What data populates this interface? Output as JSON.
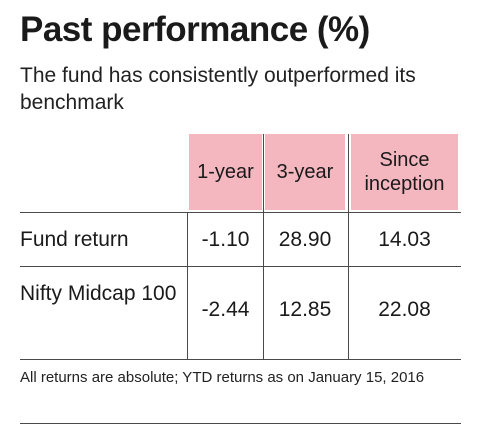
{
  "title": "Past performance (%)",
  "subtitle": "The fund has consistently outperformed its benchmark",
  "note": "All returns are absolute; YTD returns as on January 15, 2016",
  "colors": {
    "header_fill": "#f4b6bf",
    "rule": "#4a4a4a"
  },
  "chart_data": {
    "type": "table",
    "columns": [
      "1-year",
      "3-year",
      "Since inception"
    ],
    "rows": [
      {
        "label": "Fund return",
        "values": [
          "-1.10",
          "28.90",
          "14.03"
        ]
      },
      {
        "label": "Nifty Midcap 100",
        "values": [
          "-2.44",
          "12.85",
          "22.08"
        ]
      }
    ]
  }
}
